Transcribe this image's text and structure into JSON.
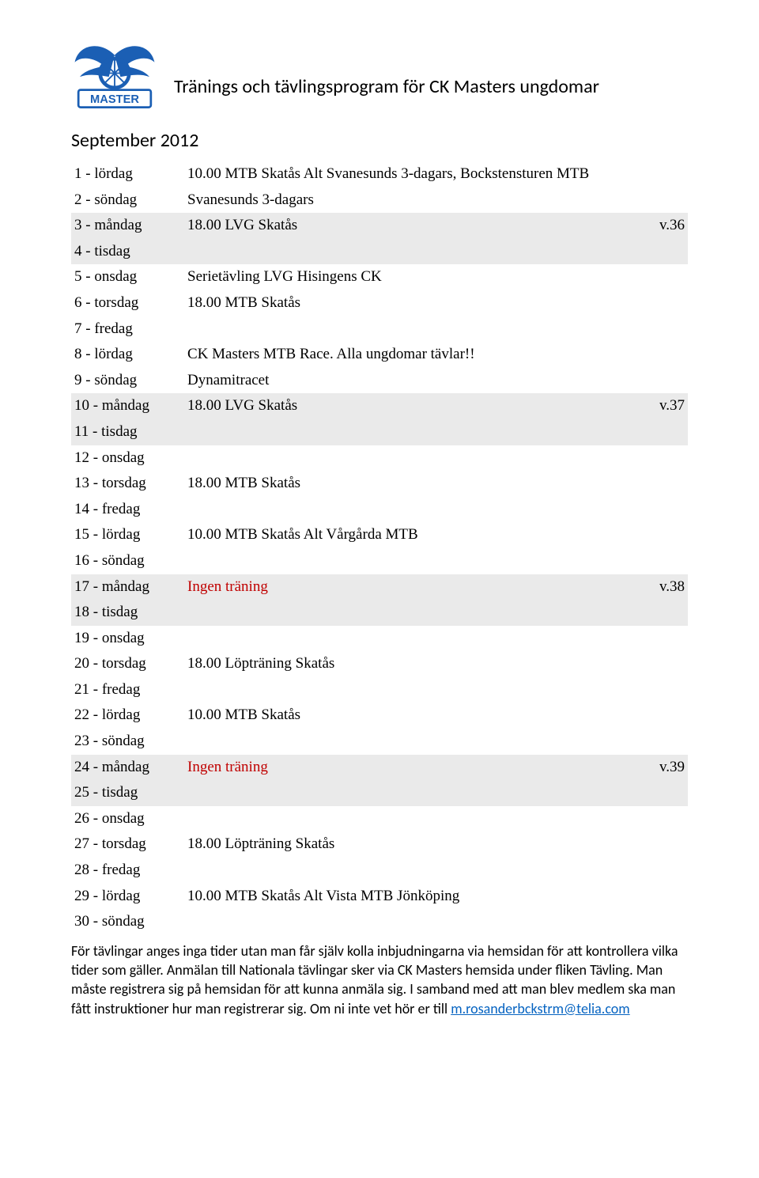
{
  "title": "Tränings och tävlingsprogram för CK Masters ungdomar",
  "month_heading": "September 2012",
  "style": {
    "shaded_bg": "#eaeaea",
    "red_text_color": "#c00000",
    "link_color": "#0563c1",
    "body_font": "Calibri",
    "table_font": "Times New Roman",
    "title_fontsize": 24,
    "table_fontsize": 19,
    "footer_fontsize": 18,
    "logo_colors": {
      "fill": "#1b5fb4",
      "text_bg": "#ffffff"
    }
  },
  "rows": [
    {
      "day": "1 - lördag",
      "text": "10.00 MTB Skatås Alt Svanesunds 3-dagars, Bockstensturen MTB",
      "week": ""
    },
    {
      "day": "2 - söndag",
      "text": "Svanesunds 3-dagars",
      "week": ""
    },
    {
      "day": "3 - måndag",
      "text": "18.00 LVG Skatås",
      "week": "v.36",
      "shaded": true
    },
    {
      "day": "4 - tisdag",
      "text": "",
      "week": "",
      "shaded": true
    },
    {
      "day": "5 - onsdag",
      "text": "Serietävling LVG Hisingens CK",
      "week": ""
    },
    {
      "day": "6 - torsdag",
      "text": "18.00 MTB Skatås",
      "week": ""
    },
    {
      "day": "7 - fredag",
      "text": "",
      "week": ""
    },
    {
      "day": "8 - lördag",
      "text": "CK Masters MTB Race. Alla ungdomar tävlar!!",
      "week": ""
    },
    {
      "day": "9 - söndag",
      "text": "Dynamitracet",
      "week": ""
    },
    {
      "day": "10 - måndag",
      "text": "18.00 LVG Skatås",
      "week": "v.37",
      "shaded": true
    },
    {
      "day": "11 - tisdag",
      "text": "",
      "week": "",
      "shaded": true
    },
    {
      "day": "12 - onsdag",
      "text": "",
      "week": ""
    },
    {
      "day": "13 - torsdag",
      "text": "18.00 MTB Skatås",
      "week": ""
    },
    {
      "day": "14 - fredag",
      "text": "",
      "week": ""
    },
    {
      "day": "15 - lördag",
      "text": "10.00 MTB Skatås Alt Vårgårda MTB",
      "week": ""
    },
    {
      "day": "16 - söndag",
      "text": "",
      "week": ""
    },
    {
      "day": "17 - måndag",
      "text": "Ingen träning",
      "week": "v.38",
      "shaded": true,
      "red": true
    },
    {
      "day": "18 - tisdag",
      "text": "",
      "week": "",
      "shaded": true
    },
    {
      "day": "19 - onsdag",
      "text": "",
      "week": ""
    },
    {
      "day": "20 - torsdag",
      "text": "18.00 Löpträning Skatås",
      "week": ""
    },
    {
      "day": "21 - fredag",
      "text": "",
      "week": ""
    },
    {
      "day": "22 - lördag",
      "text": "10.00 MTB Skatås",
      "week": ""
    },
    {
      "day": "23 - söndag",
      "text": "",
      "week": ""
    },
    {
      "day": "24 - måndag",
      "text": "Ingen träning",
      "week": "v.39",
      "shaded": true,
      "red": true
    },
    {
      "day": "25 - tisdag",
      "text": "",
      "week": "",
      "shaded": true
    },
    {
      "day": "26 - onsdag",
      "text": "",
      "week": ""
    },
    {
      "day": "27 - torsdag",
      "text": "18.00 Löpträning Skatås",
      "week": ""
    },
    {
      "day": "28 - fredag",
      "text": "",
      "week": ""
    },
    {
      "day": "29 - lördag",
      "text": "10.00 MTB Skatås Alt Vista MTB Jönköping",
      "week": ""
    },
    {
      "day": "30 - söndag",
      "text": "",
      "week": ""
    }
  ],
  "footer": {
    "text_before_link": "För tävlingar anges inga tider utan man får själv kolla inbjudningarna via hemsidan för att kontrollera vilka tider som gäller. Anmälan till Nationala tävlingar sker via CK Masters hemsida under fliken Tävling. Man måste registrera sig på hemsidan för att kunna anmäla sig. I samband med att man blev medlem ska man fått instruktioner hur man registrerar sig. Om ni inte vet hör er till ",
    "link_text": "m.rosanderbckstrm@telia.com",
    "link_href": "mailto:m.rosanderbckstrm@telia.com"
  }
}
